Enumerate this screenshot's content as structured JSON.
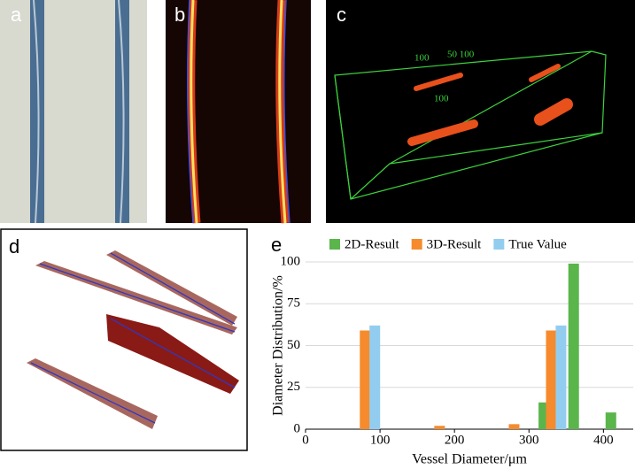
{
  "panel_labels": [
    "a",
    "b",
    "c",
    "d",
    "e"
  ],
  "panel_c_labels": [
    "100",
    "50 100",
    "100"
  ],
  "chart_data": {
    "type": "bar",
    "xlabel": "Vessel Diameter/μm",
    "ylabel": "Diameter Distribution/%",
    "xlim": [
      0,
      440
    ],
    "xticks": [
      0,
      100,
      200,
      300,
      400
    ],
    "ylim": [
      0,
      100
    ],
    "yticks": [
      0,
      25,
      50,
      75,
      100
    ],
    "grid": true,
    "legend": "top",
    "series": [
      {
        "name": "2D-Result",
        "color": "#5ab54b",
        "x": [
          320,
          360,
          410
        ],
        "values": [
          16,
          99,
          10
        ]
      },
      {
        "name": "3D-Result",
        "color": "#f58b2c",
        "x": [
          80,
          180,
          280,
          330
        ],
        "values": [
          59,
          2,
          3,
          59
        ]
      },
      {
        "name": "True Value",
        "color": "#92cdf0",
        "x": [
          93,
          343
        ],
        "values": [
          62,
          62
        ]
      }
    ]
  }
}
